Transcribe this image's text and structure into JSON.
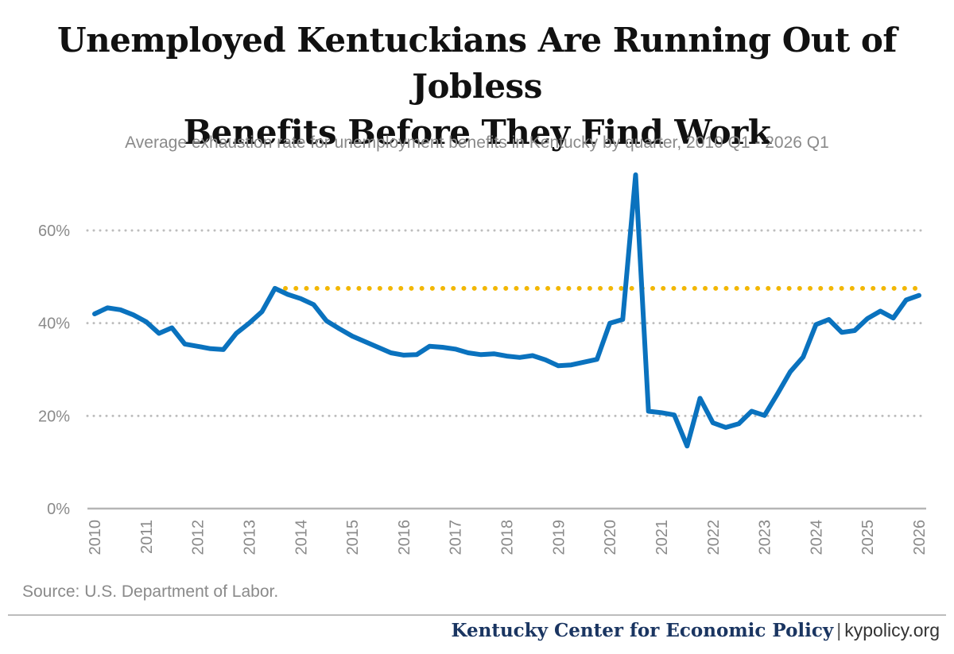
{
  "header": {
    "title_line1": "Unemployed Kentuckians Are Running Out of Jobless",
    "title_line2": "Benefits Before They Find Work",
    "subtitle": "Average exhaustion rate for unemployment benefits in Kentucky by quarter, 2010 Q1 - 2026 Q1"
  },
  "source": "Source: U.S. Department of Labor.",
  "footer": {
    "org": "Kentucky Center for Economic Policy",
    "separator": "|",
    "site": "kypolicy.org"
  },
  "colors": {
    "series": "#0a72be",
    "reference": "#f2b705",
    "grid": "#bdbdbd",
    "axis": "#b5b5b5",
    "tick_text": "#8a8a8a",
    "footer_text": "#1a3561"
  },
  "chart_data": {
    "type": "line",
    "title": "Unemployed Kentuckians Are Running Out of Jobless Benefits Before They Find Work",
    "subtitle": "Average exhaustion rate for unemployment benefits in Kentucky by quarter, 2010 Q1 - 2026 Q1",
    "xlabel": "",
    "ylabel": "",
    "x_ticks": [
      "2010",
      "2011",
      "2012",
      "2013",
      "2014",
      "2015",
      "2016",
      "2017",
      "2018",
      "2019",
      "2020",
      "2021",
      "2022",
      "2023",
      "2024",
      "2025",
      "2026"
    ],
    "y_ticks": [
      0,
      20,
      40,
      60
    ],
    "y_tick_labels": [
      "0%",
      "20%",
      "40%",
      "60%"
    ],
    "ylim": [
      0,
      72
    ],
    "xlim": [
      2010.0,
      2026.0
    ],
    "grid": "horizontal dotted",
    "series": [
      {
        "x": [
          2010.0,
          2010.25,
          2010.5,
          2010.75,
          2011.0,
          2011.25,
          2011.5,
          2011.75,
          2012.0,
          2012.25,
          2012.5,
          2012.75,
          2013.0,
          2013.25,
          2013.5,
          2013.75,
          2014.0,
          2014.25,
          2014.5,
          2014.75,
          2015.0,
          2015.25,
          2015.5,
          2015.75,
          2016.0,
          2016.25,
          2016.5,
          2016.75,
          2017.0,
          2017.25,
          2017.5,
          2017.75,
          2018.0,
          2018.25,
          2018.5,
          2018.75,
          2019.0,
          2019.25,
          2019.5,
          2019.75,
          2020.0,
          2020.25,
          2020.5,
          2020.75,
          2021.0,
          2021.25,
          2021.5,
          2021.75,
          2022.0,
          2022.25,
          2022.5,
          2022.75,
          2023.0,
          2023.25,
          2023.5,
          2023.75,
          2024.0,
          2024.25,
          2024.5,
          2024.75,
          2025.0,
          2025.25,
          2025.5,
          2025.75,
          2026.0
        ],
        "y": [
          42.0,
          43.3,
          42.9,
          41.8,
          40.3,
          37.8,
          39.0,
          35.5,
          35.0,
          34.5,
          34.3,
          37.8,
          40.0,
          42.5,
          47.5,
          46.2,
          45.3,
          44.0,
          40.5,
          38.8,
          37.2,
          36.0,
          34.8,
          33.6,
          33.1,
          33.2,
          35.0,
          34.8,
          34.4,
          33.6,
          33.2,
          33.4,
          32.9,
          32.6,
          33.0,
          32.1,
          30.8,
          31.0,
          31.6,
          32.2,
          40.0,
          40.8,
          72.0,
          21.0,
          20.7,
          20.2,
          13.5,
          23.8,
          18.5,
          17.5,
          18.3,
          21.0,
          20.1,
          24.7,
          29.5,
          32.7,
          39.7,
          40.8,
          38.0,
          38.4,
          41.0,
          42.6,
          41.1,
          45.0,
          46.0
        ]
      }
    ],
    "reference_line": {
      "y": 47.5,
      "x_start": 2013.5,
      "x_end": 2026.0,
      "style": "dotted"
    }
  }
}
